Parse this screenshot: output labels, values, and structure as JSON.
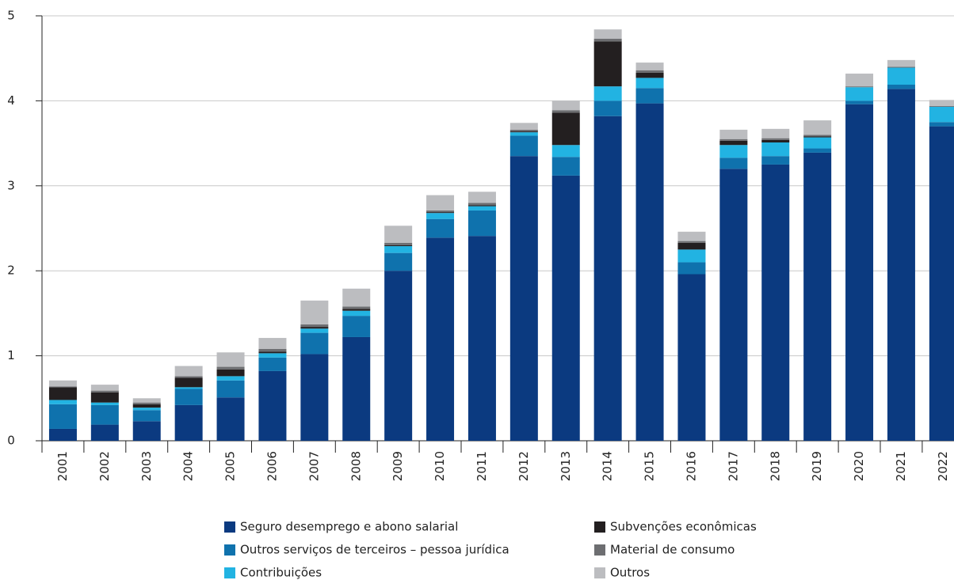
{
  "chart_data": {
    "type": "stacked_bar",
    "categories": [
      "2001",
      "2002",
      "2003",
      "2004",
      "2005",
      "2006",
      "2007",
      "2008",
      "2009",
      "2010",
      "2011",
      "2012",
      "2013",
      "2014",
      "2015",
      "2016",
      "2017",
      "2018",
      "2019",
      "2020",
      "2021",
      "2022"
    ],
    "series": [
      {
        "name": "Seguro desemprego e abono salarial",
        "color": "#0b3a80",
        "values": [
          0.14,
          0.19,
          0.23,
          0.42,
          0.51,
          0.82,
          1.02,
          1.22,
          2.0,
          2.39,
          2.41,
          3.35,
          3.12,
          3.82,
          3.97,
          1.96,
          3.2,
          3.25,
          3.39,
          3.96,
          4.14,
          3.7
        ]
      },
      {
        "name": "Outros serviços de terceiros – pessoa jurídica",
        "color": "#0f72ad",
        "values": [
          0.29,
          0.23,
          0.13,
          0.19,
          0.2,
          0.16,
          0.25,
          0.25,
          0.21,
          0.22,
          0.3,
          0.24,
          0.22,
          0.18,
          0.18,
          0.14,
          0.13,
          0.1,
          0.05,
          0.04,
          0.05,
          0.05
        ]
      },
      {
        "name": "Contribuições",
        "color": "#22b3e2",
        "values": [
          0.05,
          0.03,
          0.03,
          0.02,
          0.05,
          0.05,
          0.05,
          0.06,
          0.08,
          0.07,
          0.05,
          0.04,
          0.14,
          0.17,
          0.12,
          0.15,
          0.15,
          0.16,
          0.13,
          0.16,
          0.2,
          0.18
        ]
      },
      {
        "name": "Subvenções econômicas",
        "color": "#231f20",
        "values": [
          0.15,
          0.12,
          0.04,
          0.11,
          0.08,
          0.02,
          0.02,
          0.02,
          0.01,
          0.01,
          0.01,
          0.01,
          0.38,
          0.53,
          0.06,
          0.08,
          0.05,
          0.03,
          0.01,
          0,
          0,
          0
        ]
      },
      {
        "name": "Material de consumo",
        "color": "#6d6e71",
        "values": [
          0.01,
          0.02,
          0.02,
          0.02,
          0.03,
          0.03,
          0.03,
          0.03,
          0.03,
          0.02,
          0.03,
          0.02,
          0.03,
          0.03,
          0.03,
          0.02,
          0.02,
          0.02,
          0.02,
          0.01,
          0.01,
          0.01
        ]
      },
      {
        "name": "Outros",
        "color": "#bcbdc0",
        "values": [
          0.07,
          0.07,
          0.05,
          0.12,
          0.17,
          0.13,
          0.28,
          0.21,
          0.2,
          0.18,
          0.13,
          0.08,
          0.11,
          0.11,
          0.09,
          0.11,
          0.11,
          0.11,
          0.17,
          0.15,
          0.08,
          0.07
        ]
      }
    ],
    "ylim": [
      0,
      5
    ],
    "yticks": [
      0,
      1,
      2,
      3,
      4,
      5
    ],
    "grid": true
  }
}
